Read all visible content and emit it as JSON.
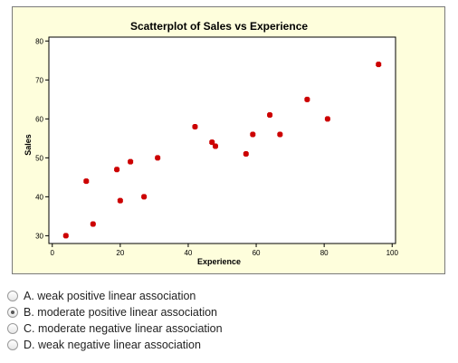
{
  "chart_data": {
    "type": "scatter",
    "title": "Scatterplot of Sales vs Experience",
    "xlabel": "Experience",
    "ylabel": "Sales",
    "xlim": [
      -1,
      101
    ],
    "ylim": [
      28,
      81
    ],
    "xticks": [
      0,
      20,
      40,
      60,
      80,
      100
    ],
    "yticks": [
      30,
      40,
      50,
      60,
      70,
      80
    ],
    "marker_color": "#cc0000",
    "grid": false,
    "points": [
      {
        "x": 4,
        "y": 30
      },
      {
        "x": 10,
        "y": 44
      },
      {
        "x": 12,
        "y": 33
      },
      {
        "x": 19,
        "y": 47
      },
      {
        "x": 20,
        "y": 39
      },
      {
        "x": 23,
        "y": 49
      },
      {
        "x": 27,
        "y": 40
      },
      {
        "x": 31,
        "y": 50
      },
      {
        "x": 42,
        "y": 58
      },
      {
        "x": 47,
        "y": 54
      },
      {
        "x": 48,
        "y": 53
      },
      {
        "x": 57,
        "y": 51
      },
      {
        "x": 59,
        "y": 56
      },
      {
        "x": 64,
        "y": 61
      },
      {
        "x": 67,
        "y": 56
      },
      {
        "x": 75,
        "y": 65
      },
      {
        "x": 81,
        "y": 60
      },
      {
        "x": 96,
        "y": 74
      }
    ]
  },
  "options": [
    {
      "label": "A. weak positive linear association",
      "selected": false
    },
    {
      "label": "B. moderate positive linear association",
      "selected": true
    },
    {
      "label": "C. moderate negative linear association",
      "selected": false
    },
    {
      "label": "D. weak negative linear association",
      "selected": false
    }
  ]
}
